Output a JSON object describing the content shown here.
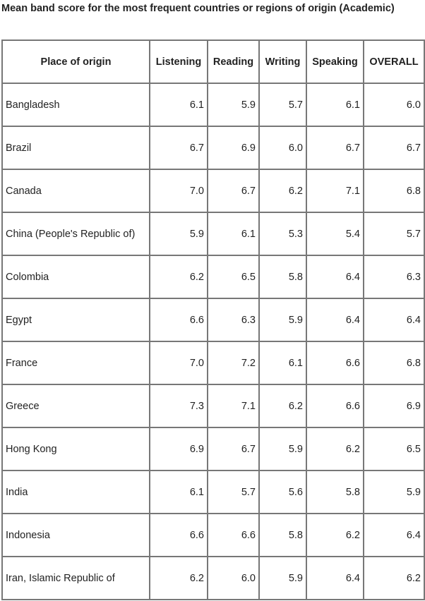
{
  "title": "Mean band score for the most frequent countries or regions of origin (Academic)",
  "chart_data": {
    "type": "table",
    "title": "Mean band score for the most frequent countries or regions of origin (Academic)",
    "columns": [
      "Place of origin",
      "Listening",
      "Reading",
      "Writing",
      "Speaking",
      "OVERALL"
    ],
    "rows": [
      {
        "place": "Bangladesh",
        "values": [
          "6.1",
          "5.9",
          "5.7",
          "6.1",
          "6.0"
        ]
      },
      {
        "place": "Brazil",
        "values": [
          "6.7",
          "6.9",
          "6.0",
          "6.7",
          "6.7"
        ]
      },
      {
        "place": "Canada",
        "values": [
          "7.0",
          "6.7",
          "6.2",
          "7.1",
          "6.8"
        ]
      },
      {
        "place": "China (People's Republic of)",
        "values": [
          "5.9",
          "6.1",
          "5.3",
          "5.4",
          "5.7"
        ]
      },
      {
        "place": "Colombia",
        "values": [
          "6.2",
          "6.5",
          "5.8",
          "6.4",
          "6.3"
        ]
      },
      {
        "place": "Egypt",
        "values": [
          "6.6",
          "6.3",
          "5.9",
          "6.4",
          "6.4"
        ]
      },
      {
        "place": "France",
        "values": [
          "7.0",
          "7.2",
          "6.1",
          "6.6",
          "6.8"
        ]
      },
      {
        "place": "Greece",
        "values": [
          "7.3",
          "7.1",
          "6.2",
          "6.6",
          "6.9"
        ]
      },
      {
        "place": "Hong Kong",
        "values": [
          "6.9",
          "6.7",
          "5.9",
          "6.2",
          "6.5"
        ]
      },
      {
        "place": "India",
        "values": [
          "6.1",
          "5.7",
          "5.6",
          "5.8",
          "5.9"
        ]
      },
      {
        "place": "Indonesia",
        "values": [
          "6.6",
          "6.6",
          "5.8",
          "6.2",
          "6.4"
        ]
      },
      {
        "place": "Iran, Islamic Republic of",
        "values": [
          "6.2",
          "6.0",
          "5.9",
          "6.4",
          "6.2"
        ]
      }
    ]
  }
}
